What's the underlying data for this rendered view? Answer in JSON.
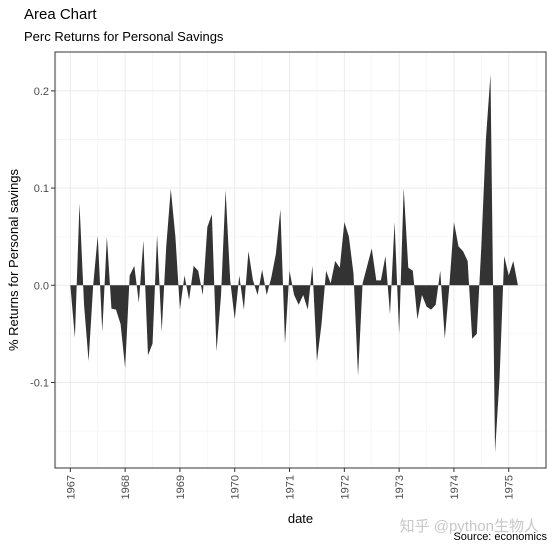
{
  "chart_data": {
    "type": "area",
    "title": "Area Chart",
    "subtitle": "Perc Returns for Personal Savings",
    "caption": "Source: economics",
    "xlabel": "date",
    "ylabel": "% Returns for Personal savings",
    "xlim": [
      1966.72,
      1975.68
    ],
    "ylim": [
      -0.188,
      0.24
    ],
    "x_ticks": [
      1967,
      1968,
      1969,
      1970,
      1971,
      1972,
      1973,
      1974,
      1975
    ],
    "x_tick_labels": [
      "1967",
      "1968",
      "1969",
      "1970",
      "1971",
      "1972",
      "1973",
      "1974",
      "1975"
    ],
    "y_ticks": [
      -0.1,
      0.0,
      0.1,
      0.2
    ],
    "y_tick_labels": [
      "-0.1",
      "0.0",
      "0.1",
      "0.2"
    ],
    "grid": true,
    "fill_color": "#333333",
    "series": [
      {
        "x": [
          1967.0,
          1967.083,
          1967.167,
          1967.25,
          1967.333,
          1967.417,
          1967.5,
          1967.583,
          1967.667,
          1967.75,
          1967.833,
          1967.917,
          1968.0,
          1968.083,
          1968.167,
          1968.25,
          1968.333,
          1968.417,
          1968.5,
          1968.583,
          1968.667,
          1968.75,
          1968.833,
          1968.917,
          1969.0,
          1969.083,
          1969.167,
          1969.25,
          1969.333,
          1969.417,
          1969.5,
          1969.583,
          1969.667,
          1969.75,
          1969.833,
          1969.917,
          1970.0,
          1970.083,
          1970.167,
          1970.25,
          1970.333,
          1970.417,
          1970.5,
          1970.583,
          1970.667,
          1970.75,
          1970.833,
          1970.917,
          1971.0,
          1971.083,
          1971.167,
          1971.25,
          1971.333,
          1971.417,
          1971.5,
          1971.583,
          1971.667,
          1971.75,
          1971.833,
          1971.917,
          1972.0,
          1972.083,
          1972.167,
          1972.25,
          1972.333,
          1972.417,
          1972.5,
          1972.583,
          1972.667,
          1972.75,
          1972.833,
          1972.917,
          1973.0,
          1973.083,
          1973.167,
          1973.25,
          1973.333,
          1973.417,
          1973.5,
          1973.583,
          1973.667,
          1973.75,
          1973.833,
          1973.917,
          1974.0,
          1974.083,
          1974.167,
          1974.25,
          1974.333,
          1974.417,
          1974.5,
          1974.583,
          1974.667,
          1974.75,
          1974.833,
          1974.917,
          1975.0,
          1975.083,
          1975.167,
          1975.25
        ],
        "y": [
          0.0,
          -0.054,
          0.084,
          -0.02,
          -0.078,
          0.0,
          0.051,
          -0.048,
          0.05,
          -0.024,
          -0.025,
          -0.04,
          -0.085,
          0.01,
          0.02,
          -0.018,
          0.046,
          -0.072,
          -0.06,
          0.052,
          -0.048,
          0.04,
          0.099,
          0.05,
          -0.025,
          0.01,
          -0.015,
          0.02,
          0.015,
          -0.01,
          0.06,
          0.073,
          -0.068,
          -0.01,
          0.098,
          0.005,
          -0.035,
          0.01,
          -0.025,
          0.035,
          0.005,
          -0.01,
          0.016,
          -0.01,
          0.008,
          0.032,
          0.078,
          -0.06,
          0.015,
          -0.01,
          -0.02,
          -0.01,
          -0.025,
          0.02,
          -0.078,
          -0.04,
          0.015,
          0.002,
          0.025,
          0.018,
          0.065,
          0.05,
          0.012,
          -0.093,
          0.002,
          0.02,
          0.038,
          0.005,
          0.005,
          0.03,
          -0.03,
          0.065,
          -0.05,
          0.1,
          0.018,
          0.015,
          -0.035,
          -0.01,
          -0.022,
          -0.025,
          -0.02,
          0.015,
          -0.055,
          0.0,
          0.065,
          0.04,
          0.035,
          0.025,
          -0.055,
          -0.05,
          0.04,
          0.15,
          0.217,
          -0.172,
          -0.095,
          0.03,
          0.01,
          0.025,
          0.0,
          0.0
        ]
      }
    ]
  },
  "watermark": "知乎 @python生物人"
}
